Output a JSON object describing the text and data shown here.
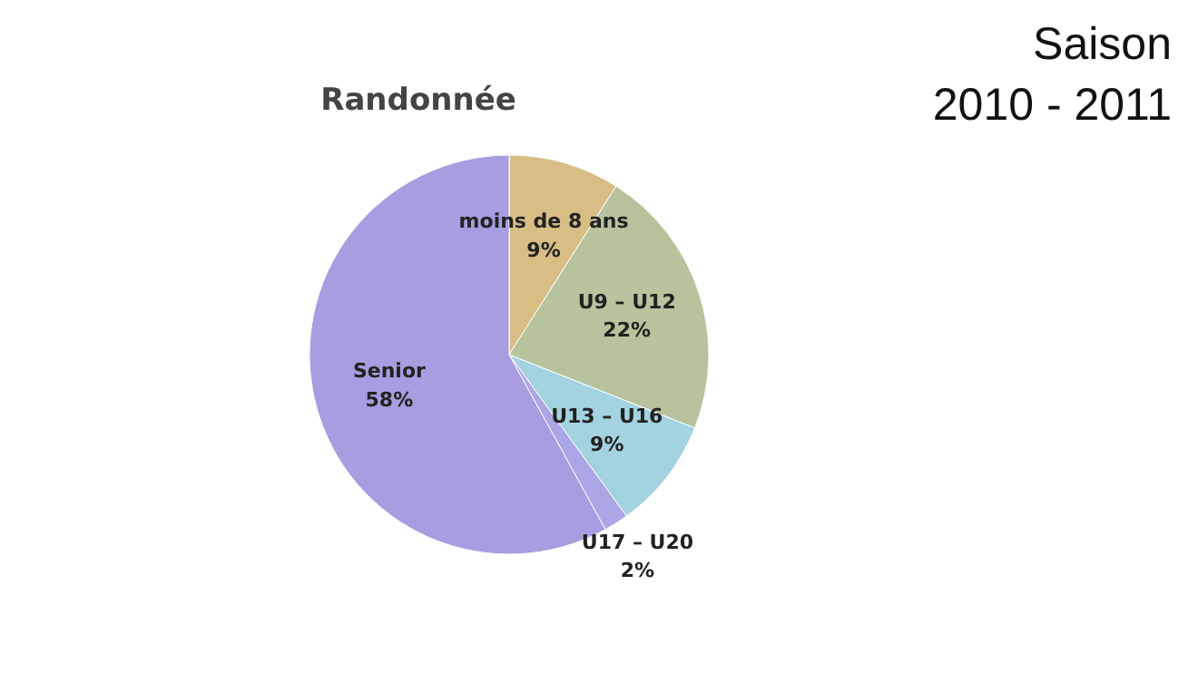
{
  "chart_data": {
    "type": "pie",
    "title": "Randonnée",
    "categories": [
      "moins de 8 ans",
      "U9 – U12",
      "U13 – U16",
      "U17 – U20",
      "Senior"
    ],
    "values": [
      9,
      22,
      9,
      2,
      58
    ],
    "value_labels": [
      "9%",
      "22%",
      "9%",
      "2%",
      "58%"
    ],
    "colors": [
      "#d8bd85",
      "#b7c39c",
      "#a3d3e0",
      "#aba6e6",
      "#a79de0"
    ],
    "annotations": [
      "Saison\n2010 - 2011"
    ]
  }
}
